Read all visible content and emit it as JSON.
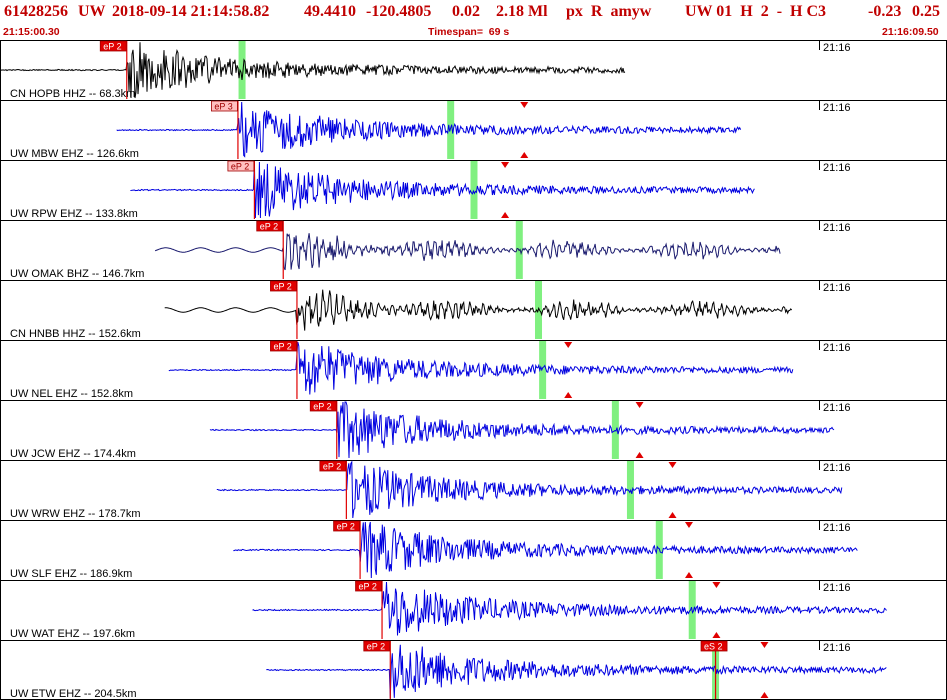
{
  "header": {
    "event_id": "61428256",
    "network": "UW",
    "datetime": "2018-09-14 21:14:58.82",
    "lat": "49.4410",
    "lon": "-120.4805",
    "depth": "0.02",
    "magnitude": "2.18 Ml",
    "flags": "px  R  amyw",
    "right_info": "UW 01  H  2  -  H C3",
    "extra1": "-0.23",
    "extra2": "0.25",
    "start_time": "21:15:00.30",
    "timespan": "Timespan=  69 s",
    "end_time": "21:16:09.50"
  },
  "colors": {
    "header_text": "#c00000",
    "trace_blue": "#0000e0",
    "trace_black": "#000000",
    "trace_navy": "#1a1a6e",
    "pick_red": "#e00000",
    "pick_pink": "#ffc0c0",
    "green_marker": "#80f080",
    "tick_red": "#e00000",
    "grid": "#000000"
  },
  "chart_data": {
    "type": "line",
    "title": "",
    "xlabel": "",
    "ylabel": "",
    "time_axis": {
      "start": "21:15:00.30",
      "end": "21:16:09.50",
      "span_s": 69
    },
    "minute_mark_label": "21:16",
    "traces": [
      {
        "label": "CN HOPB HHZ -- 68.3km",
        "color": "black",
        "start_s": 0.0,
        "end_s": 45.6,
        "onset_s": 9.2,
        "pick_label": "eP 2",
        "pick_style": "red",
        "green_s": [
          17.6
        ],
        "triangles_s": []
      },
      {
        "label": "UW MBW EHZ -- 126.6km",
        "color": "blue",
        "start_s": 8.5,
        "end_s": 54.0,
        "onset_s": 17.3,
        "pick_label": "eP 3",
        "pick_style": "pink",
        "green_s": [
          32.8
        ],
        "triangles_s": [
          38.2
        ]
      },
      {
        "label": "UW RPW EHZ -- 133.8km",
        "color": "blue",
        "start_s": 9.5,
        "end_s": 55.0,
        "onset_s": 18.5,
        "pick_label": "eP 2",
        "pick_style": "pink",
        "green_s": [
          34.5
        ],
        "triangles_s": [
          36.8
        ]
      },
      {
        "label": "UW OMAK BHZ -- 146.7km",
        "color": "navy",
        "start_s": 11.3,
        "end_s": 56.9,
        "onset_s": 20.6,
        "pick_label": "eP 2",
        "pick_style": "red",
        "green_s": [
          37.8
        ],
        "triangles_s": []
      },
      {
        "label": "CN HNBB HHZ -- 152.6km",
        "color": "black",
        "start_s": 12.0,
        "end_s": 57.7,
        "onset_s": 21.6,
        "pick_label": "eP 2",
        "pick_style": "red",
        "green_s": [
          39.2
        ],
        "triangles_s": []
      },
      {
        "label": "UW NEL EHZ -- 152.8km",
        "color": "blue",
        "start_s": 12.3,
        "end_s": 57.8,
        "onset_s": 21.6,
        "pick_label": "eP 2",
        "pick_style": "red",
        "green_s": [
          39.5
        ],
        "triangles_s": [
          41.4
        ]
      },
      {
        "label": "UW JCW EHZ -- 174.4km",
        "color": "blue",
        "start_s": 15.3,
        "end_s": 60.8,
        "onset_s": 24.5,
        "pick_label": "eP 2",
        "pick_style": "red",
        "green_s": [
          44.8
        ],
        "triangles_s": [
          46.6
        ]
      },
      {
        "label": "UW WRW EHZ -- 178.7km",
        "color": "blue",
        "start_s": 15.8,
        "end_s": 61.4,
        "onset_s": 25.2,
        "pick_label": "eP 2",
        "pick_style": "red",
        "green_s": [
          45.9
        ],
        "triangles_s": [
          49.0
        ]
      },
      {
        "label": "UW SLF EHZ -- 186.9km",
        "color": "blue",
        "start_s": 17.0,
        "end_s": 62.5,
        "onset_s": 26.2,
        "pick_label": "eP 2",
        "pick_style": "red",
        "green_s": [
          48.0
        ],
        "triangles_s": [
          50.2
        ]
      },
      {
        "label": "UW WAT EHZ -- 197.6km",
        "color": "blue",
        "start_s": 18.4,
        "end_s": 64.6,
        "onset_s": 27.8,
        "pick_label": "eP 2",
        "pick_style": "red",
        "green_s": [
          50.4
        ],
        "triangles_s": [
          52.2
        ]
      },
      {
        "label": "UW ETW EHZ -- 204.5km",
        "color": "blue",
        "start_s": 19.4,
        "end_s": 64.6,
        "onset_s": 28.4,
        "pick_label": "eP 2",
        "pick_style": "red",
        "green_s": [
          52.1
        ],
        "triangles_s": [
          55.7
        ]
      }
    ],
    "secondary_picks": [
      {
        "trace_index": 10,
        "label": "eS 2",
        "time_s": 52.1
      }
    ]
  }
}
